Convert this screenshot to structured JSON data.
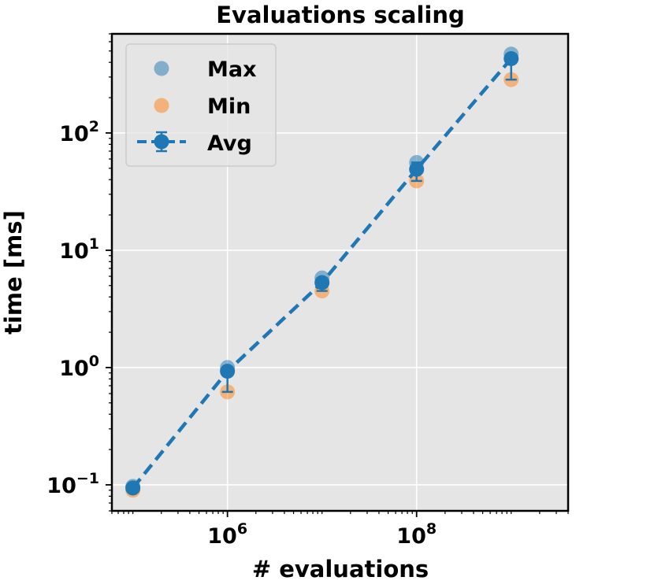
{
  "chart_data": {
    "type": "scatter",
    "title": "Evaluations scaling",
    "xlabel": "# evaluations",
    "ylabel": "time [ms]",
    "x_scale": "log",
    "y_scale": "log",
    "xlim": [
      60000,
      4000000000
    ],
    "ylim": [
      0.06,
      700
    ],
    "grid": true,
    "legend_position": "top-left",
    "x_ticks": [
      {
        "value": 1000000,
        "base": "10",
        "exp": "6"
      },
      {
        "value": 100000000,
        "base": "10",
        "exp": "8"
      }
    ],
    "y_ticks": [
      {
        "value": 0.1,
        "base": "10",
        "exp": "−1"
      },
      {
        "value": 1,
        "base": "10",
        "exp": "0"
      },
      {
        "value": 10,
        "base": "10",
        "exp": "1"
      },
      {
        "value": 100,
        "base": "10",
        "exp": "2"
      }
    ],
    "x": [
      100000,
      1000000,
      10000000,
      100000000,
      1000000000
    ],
    "series": [
      {
        "name": "Max",
        "marker": "circle",
        "color": "#1f77b4",
        "opacity": 0.5,
        "values": [
          0.097,
          1.0,
          5.8,
          56,
          470
        ]
      },
      {
        "name": "Min",
        "marker": "circle",
        "color": "#ff7f0e",
        "opacity": 0.5,
        "values": [
          0.09,
          0.62,
          4.5,
          39,
          285
        ]
      },
      {
        "name": "Avg",
        "marker": "circle",
        "line": "dashed",
        "errorbars": true,
        "color": "#1f77b4",
        "opacity": 1.0,
        "values": [
          0.094,
          0.93,
          5.3,
          49,
          430
        ]
      }
    ]
  }
}
